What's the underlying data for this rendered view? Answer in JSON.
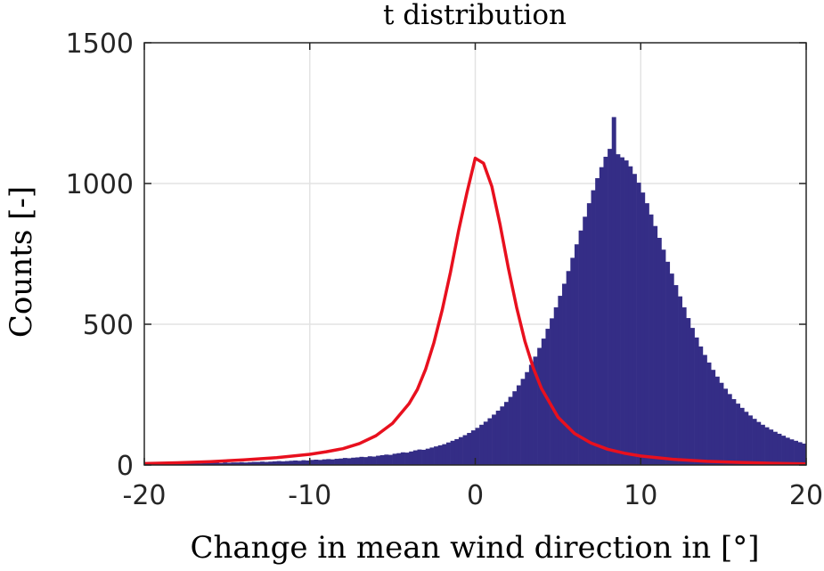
{
  "chart_data": {
    "type": "bar",
    "title": "t distribution",
    "xlabel": "Change in mean wind direction in [°]",
    "ylabel": "Counts [-]",
    "xlim": [
      -20,
      20
    ],
    "ylim": [
      0,
      1500
    ],
    "xticks": [
      "-20",
      "-10",
      "0",
      "10",
      "20"
    ],
    "yticks": [
      "0",
      "500",
      "1000",
      "1500"
    ],
    "grid": true,
    "bar_color": "#342d86",
    "fit_color": "#e8101e",
    "histogram": {
      "bin_width": 0.25,
      "bin_start": -20,
      "counts": [
        4,
        4,
        5,
        4,
        5,
        5,
        5,
        6,
        5,
        6,
        6,
        6,
        7,
        6,
        7,
        7,
        8,
        8,
        7,
        9,
        8,
        9,
        9,
        10,
        9,
        10,
        11,
        11,
        12,
        11,
        12,
        13,
        14,
        13,
        14,
        15,
        16,
        15,
        17,
        16,
        18,
        19,
        18,
        20,
        21,
        20,
        22,
        23,
        25,
        24,
        26,
        27,
        29,
        28,
        31,
        30,
        33,
        35,
        37,
        36,
        40,
        42,
        45,
        44,
        48,
        52,
        55,
        54,
        58,
        62,
        66,
        70,
        74,
        80,
        86,
        92,
        99,
        106,
        114,
        123,
        132,
        143,
        154,
        166,
        179,
        193,
        208,
        224,
        242,
        262,
        283,
        306,
        330,
        356,
        385,
        416,
        449,
        484,
        521,
        560,
        601,
        644,
        689,
        736,
        784,
        833,
        882,
        930,
        976,
        1019,
        1058,
        1095,
        1123,
        1236,
        1104,
        1093,
        1082,
        1061,
        1034,
        1003,
        968,
        930,
        890,
        849,
        807,
        765,
        722,
        680,
        639,
        599,
        560,
        522,
        487,
        453,
        421,
        391,
        364,
        338,
        314,
        292,
        271,
        252,
        234,
        218,
        203,
        189,
        176,
        164,
        153,
        143,
        134,
        126,
        118,
        111,
        104,
        97,
        91,
        86,
        81,
        76,
        72,
        68,
        64,
        60,
        57,
        54,
        51,
        49,
        46,
        44,
        42,
        40,
        38,
        36,
        35,
        33,
        32,
        30,
        29,
        28,
        27,
        26,
        25,
        24,
        23,
        22,
        21,
        20,
        20,
        19,
        18,
        17,
        17,
        16,
        15,
        15,
        14,
        14,
        13,
        13,
        12,
        12,
        11,
        11,
        10,
        10,
        10,
        9,
        9,
        8,
        8,
        8,
        7,
        7,
        7,
        6,
        6,
        6,
        5,
        5,
        5,
        5,
        4,
        4,
        4
      ]
    },
    "fit": {
      "name": "t distribution",
      "x": [
        -20,
        -18,
        -16,
        -14,
        -12,
        -10,
        -9,
        -8,
        -7,
        -6,
        -5,
        -4,
        -3.5,
        -3,
        -2.5,
        -2,
        -1.5,
        -1,
        -0.5,
        0,
        0.5,
        1,
        1.5,
        2,
        2.5,
        3,
        3.5,
        4,
        5,
        6,
        7,
        8,
        9,
        10,
        12,
        14,
        16,
        18,
        20
      ],
      "y": [
        5,
        8,
        12,
        18,
        26,
        38,
        47,
        58,
        76,
        104,
        148,
        218,
        268,
        340,
        434,
        550,
        684,
        834,
        968,
        1090,
        1072,
        990,
        854,
        700,
        560,
        440,
        346,
        272,
        170,
        112,
        78,
        56,
        42,
        32,
        20,
        13,
        9,
        6,
        4
      ]
    }
  }
}
